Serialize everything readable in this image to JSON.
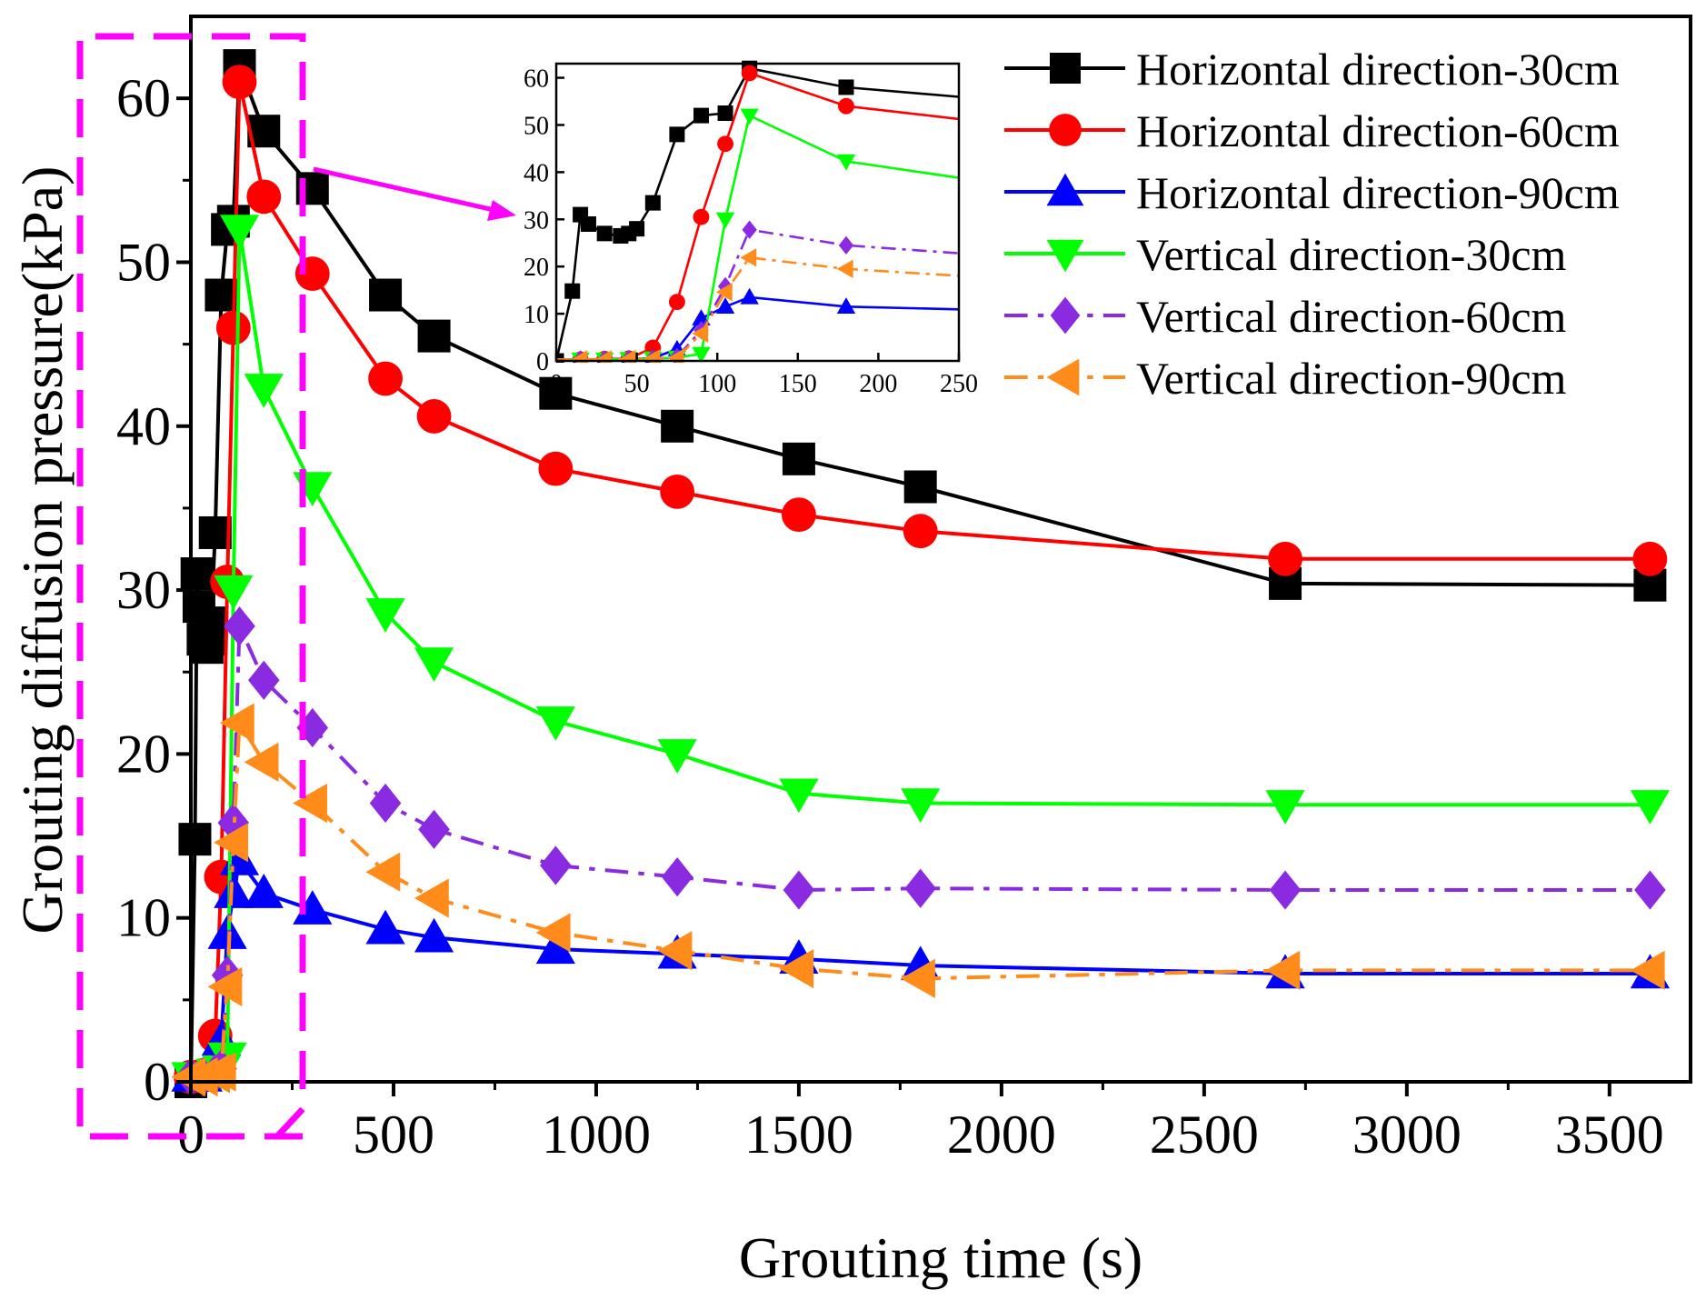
{
  "chart_data": [
    {
      "type": "line",
      "xlabel": "Grouting time (s)",
      "ylabel": "Grouting diffusion pressure(kPa)",
      "xlim": [
        0,
        3700
      ],
      "ylim": [
        0,
        65
      ],
      "xticks": [
        0,
        500,
        1000,
        1500,
        2000,
        2500,
        3000,
        3500
      ],
      "yticks": [
        0,
        10,
        20,
        30,
        40,
        50,
        60
      ],
      "legend_position": "top-right",
      "series": [
        {
          "name": "Horizontal direction-30cm",
          "color": "#000000",
          "marker": "square",
          "dash": "solid",
          "x": [
            0,
            10,
            15,
            20,
            30,
            40,
            45,
            50,
            60,
            75,
            90,
            105,
            120,
            180,
            300,
            480,
            600,
            900,
            1200,
            1500,
            1800,
            2700,
            3600
          ],
          "y": [
            0,
            14.8,
            31,
            29,
            27,
            26.5,
            27,
            28,
            33.5,
            48,
            52,
            52.5,
            62,
            58,
            54.5,
            48,
            45.5,
            42,
            40,
            38,
            36.3,
            30.4,
            30.3
          ]
        },
        {
          "name": "Horizontal direction-60cm",
          "color": "#ff0000",
          "marker": "circle",
          "dash": "solid",
          "x": [
            0,
            15,
            30,
            45,
            60,
            75,
            90,
            105,
            120,
            180,
            300,
            480,
            600,
            900,
            1200,
            1500,
            1800,
            2700,
            3600
          ],
          "y": [
            0.3,
            0.3,
            0.4,
            0.5,
            2.8,
            12.5,
            30.5,
            46,
            61,
            54,
            49.3,
            42.9,
            40.6,
            37.4,
            36,
            34.6,
            33.6,
            31.9,
            31.9
          ]
        },
        {
          "name": "Horizontal direction-90cm",
          "color": "#0000ff",
          "marker": "triangle-up",
          "dash": "solid",
          "x": [
            0,
            15,
            30,
            45,
            60,
            75,
            90,
            105,
            120,
            180,
            300,
            480,
            600,
            900,
            1200,
            1500,
            1800,
            2700,
            3600
          ],
          "y": [
            0.3,
            0.3,
            0.3,
            0.4,
            0.6,
            2.5,
            9,
            11.5,
            13.5,
            11.5,
            10.5,
            9.3,
            8.8,
            8.1,
            7.8,
            7.5,
            7.1,
            6.6,
            6.6
          ]
        },
        {
          "name": "Vertical direction-30cm",
          "color": "#00ff00",
          "marker": "triangle-down",
          "dash": "solid",
          "x": [
            0,
            15,
            30,
            45,
            60,
            75,
            90,
            105,
            120,
            180,
            300,
            480,
            600,
            900,
            1200,
            1500,
            1800,
            2700,
            3600
          ],
          "y": [
            0.3,
            0.3,
            0.3,
            0.4,
            0.5,
            0.7,
            1.5,
            30,
            52,
            42.3,
            36.3,
            28.6,
            25.6,
            22,
            20,
            17.6,
            17,
            16.9,
            16.9
          ]
        },
        {
          "name": "Vertical direction-60cm",
          "color": "#8a2be2",
          "marker": "diamond",
          "dash": "dashdot",
          "x": [
            0,
            15,
            30,
            45,
            60,
            75,
            90,
            105,
            120,
            180,
            300,
            480,
            600,
            900,
            1200,
            1500,
            1800,
            2700,
            3600
          ],
          "y": [
            0.3,
            0.3,
            0.3,
            0.4,
            0.5,
            0.8,
            6.5,
            15.8,
            27.8,
            24.5,
            21.6,
            17,
            15.4,
            13.2,
            12.5,
            11.7,
            11.8,
            11.7,
            11.7
          ]
        },
        {
          "name": "Vertical direction-90cm",
          "color": "#ff8c1a",
          "marker": "triangle-left",
          "dash": "dashdot",
          "x": [
            0,
            15,
            30,
            45,
            60,
            75,
            90,
            105,
            120,
            180,
            300,
            480,
            600,
            900,
            1200,
            1500,
            1800,
            2700,
            3600
          ],
          "y": [
            0.3,
            0.3,
            0.3,
            0.4,
            0.5,
            0.6,
            5.8,
            14.6,
            21.9,
            19.5,
            17,
            12.8,
            11.2,
            9.1,
            8,
            6.9,
            6.3,
            6.8,
            6.8
          ]
        }
      ]
    },
    {
      "type": "line",
      "xlabel": "",
      "ylabel": "",
      "xlim": [
        0,
        250
      ],
      "ylim": [
        0,
        63
      ],
      "xticks": [
        0,
        50,
        100,
        150,
        200,
        250
      ],
      "yticks": [
        0,
        10,
        20,
        30,
        40,
        50,
        60
      ],
      "series_ref": "same series as main chart, zoomed to 0-250 s"
    }
  ],
  "callout_color": "#ff00ff"
}
